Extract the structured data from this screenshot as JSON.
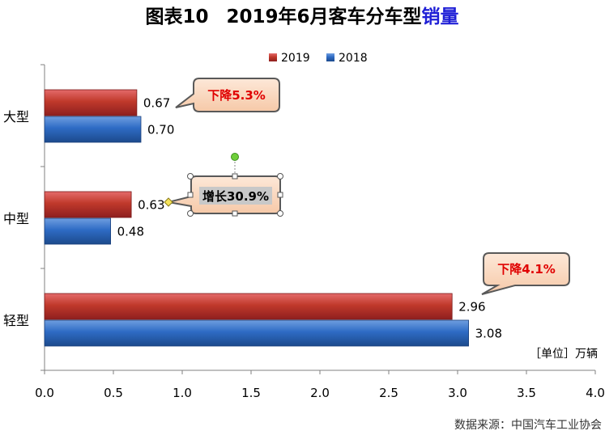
{
  "title": {
    "prefix": "图表10",
    "main": "2019年6月客车分车型",
    "accent": "销量"
  },
  "unit": "［单位］万辆",
  "source": "数据来源：中国汽车工业协会",
  "colors": {
    "series_2019": "#c0392b",
    "series_2018": "#2e6bc4",
    "callout_down": "#e00000",
    "callout_up": "#000000",
    "accent": "#1f1fd6"
  },
  "chart_data": {
    "type": "bar",
    "orientation": "horizontal",
    "categories": [
      "大型",
      "中型",
      "轻型"
    ],
    "series": [
      {
        "name": "2019",
        "values": [
          0.67,
          0.63,
          2.96
        ],
        "labels": [
          "0.67",
          "0.63",
          "2.96"
        ]
      },
      {
        "name": "2018",
        "values": [
          0.7,
          0.48,
          3.08
        ],
        "labels": [
          "0.70",
          "0.48",
          "3.08"
        ]
      }
    ],
    "xlim": [
      0,
      4.0
    ],
    "xticks": [
      "0.0",
      "0.5",
      "1.0",
      "1.5",
      "2.0",
      "2.5",
      "3.0",
      "3.5",
      "4.0"
    ],
    "legend_position": "top-center",
    "grid": false,
    "annotations": [
      {
        "text": "下降5.3%",
        "category": "大型",
        "kind": "down"
      },
      {
        "text": "增长30.9%",
        "category": "中型",
        "kind": "up"
      },
      {
        "text": "下降4.1%",
        "category": "轻型",
        "kind": "down"
      }
    ]
  }
}
